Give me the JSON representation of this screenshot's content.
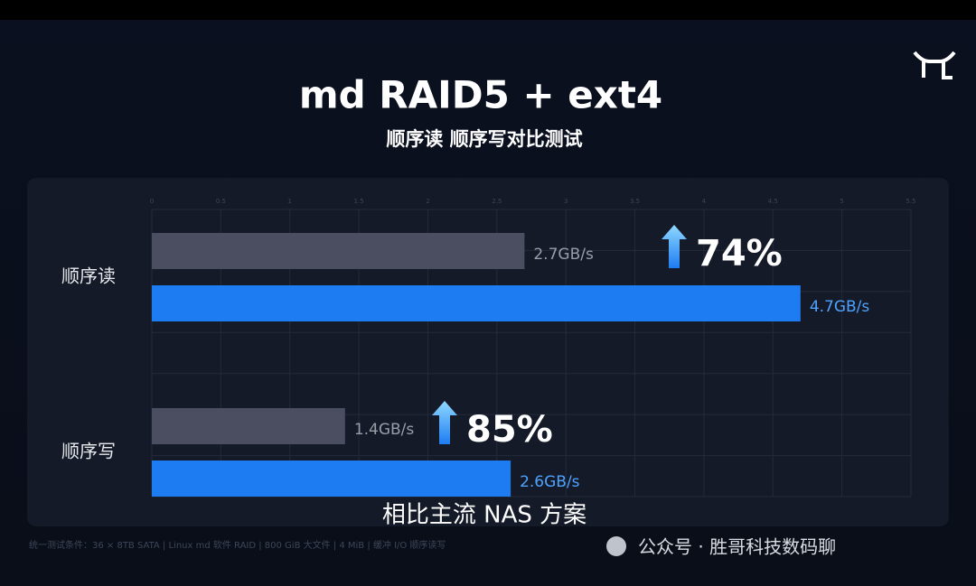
{
  "chart_data": {
    "type": "bar",
    "orientation": "horizontal",
    "title": "md RAID5 + ext4",
    "subtitle": "顺序读 顺序写对比测试",
    "categories": [
      "顺序读",
      "顺序写"
    ],
    "series": [
      {
        "color": "#4a4e60",
        "values": [
          2.7,
          1.4
        ],
        "value_labels": [
          "2.7GB/s",
          "1.4GB/s"
        ]
      },
      {
        "color": "#1e7cf2",
        "values": [
          4.7,
          2.6
        ],
        "value_labels": [
          "4.7GB/s",
          "2.6GB/s"
        ]
      }
    ],
    "annotations": [
      "74%",
      "85%"
    ],
    "xlim": [
      0,
      5.5
    ],
    "xticks": [
      0,
      0.5,
      1,
      1.5,
      2,
      2.5,
      3,
      3.5,
      4,
      4.5,
      5,
      5.5
    ],
    "grid": true,
    "caption": "相比主流 NAS 方案",
    "footnote": "统一测试条件：36 × 8TB SATA | Linux md 软件 RAID | 800 GiB 大文件 | 4 MiB | 缓冲 I/O 顺序读写",
    "watermark": "公众号 · 胜哥科技数码聊"
  }
}
